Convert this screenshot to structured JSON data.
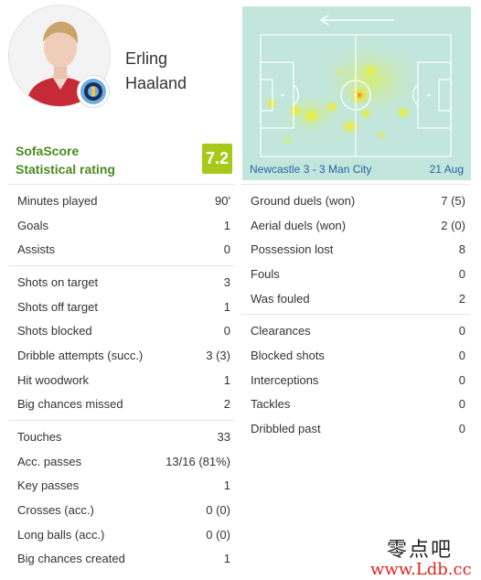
{
  "player": {
    "first_name": "Erling",
    "last_name": "Haaland"
  },
  "rating": {
    "brand_line1": "SofaScore",
    "brand_line2": "Statistical rating",
    "value": "7.2",
    "color": "#a6c91a"
  },
  "heatmap": {
    "match": "Newcastle 3 - 3 Man City",
    "date": "21 Aug",
    "direction_icon": "arrow-left-icon",
    "pitch_color": "#c2e6db"
  },
  "stats_left": [
    [
      {
        "label": "Minutes played",
        "value": "90'"
      },
      {
        "label": "Goals",
        "value": "1"
      },
      {
        "label": "Assists",
        "value": "0"
      }
    ],
    [
      {
        "label": "Shots on target",
        "value": "3"
      },
      {
        "label": "Shots off target",
        "value": "1"
      },
      {
        "label": "Shots blocked",
        "value": "0"
      },
      {
        "label": "Dribble attempts (succ.)",
        "value": "3 (3)"
      },
      {
        "label": "Hit woodwork",
        "value": "1"
      },
      {
        "label": "Big chances missed",
        "value": "2"
      }
    ],
    [
      {
        "label": "Touches",
        "value": "33"
      },
      {
        "label": "Acc. passes",
        "value": "13/16 (81%)"
      },
      {
        "label": "Key passes",
        "value": "1"
      },
      {
        "label": "Crosses (acc.)",
        "value": "0 (0)"
      },
      {
        "label": "Long balls (acc.)",
        "value": "0 (0)"
      },
      {
        "label": "Big chances created",
        "value": "1"
      }
    ]
  ],
  "stats_right": [
    [
      {
        "label": "Ground duels (won)",
        "value": "7 (5)"
      },
      {
        "label": "Aerial duels (won)",
        "value": "2 (0)"
      },
      {
        "label": "Possession lost",
        "value": "8"
      },
      {
        "label": "Fouls",
        "value": "0"
      },
      {
        "label": "Was fouled",
        "value": "2"
      }
    ],
    [
      {
        "label": "Clearances",
        "value": "0"
      },
      {
        "label": "Blocked shots",
        "value": "0"
      },
      {
        "label": "Interceptions",
        "value": "0"
      },
      {
        "label": "Tackles",
        "value": "0"
      },
      {
        "label": "Dribbled past",
        "value": "0"
      }
    ]
  ],
  "watermark": {
    "chinese": "零点吧",
    "url": "www.Ldb.cc"
  }
}
